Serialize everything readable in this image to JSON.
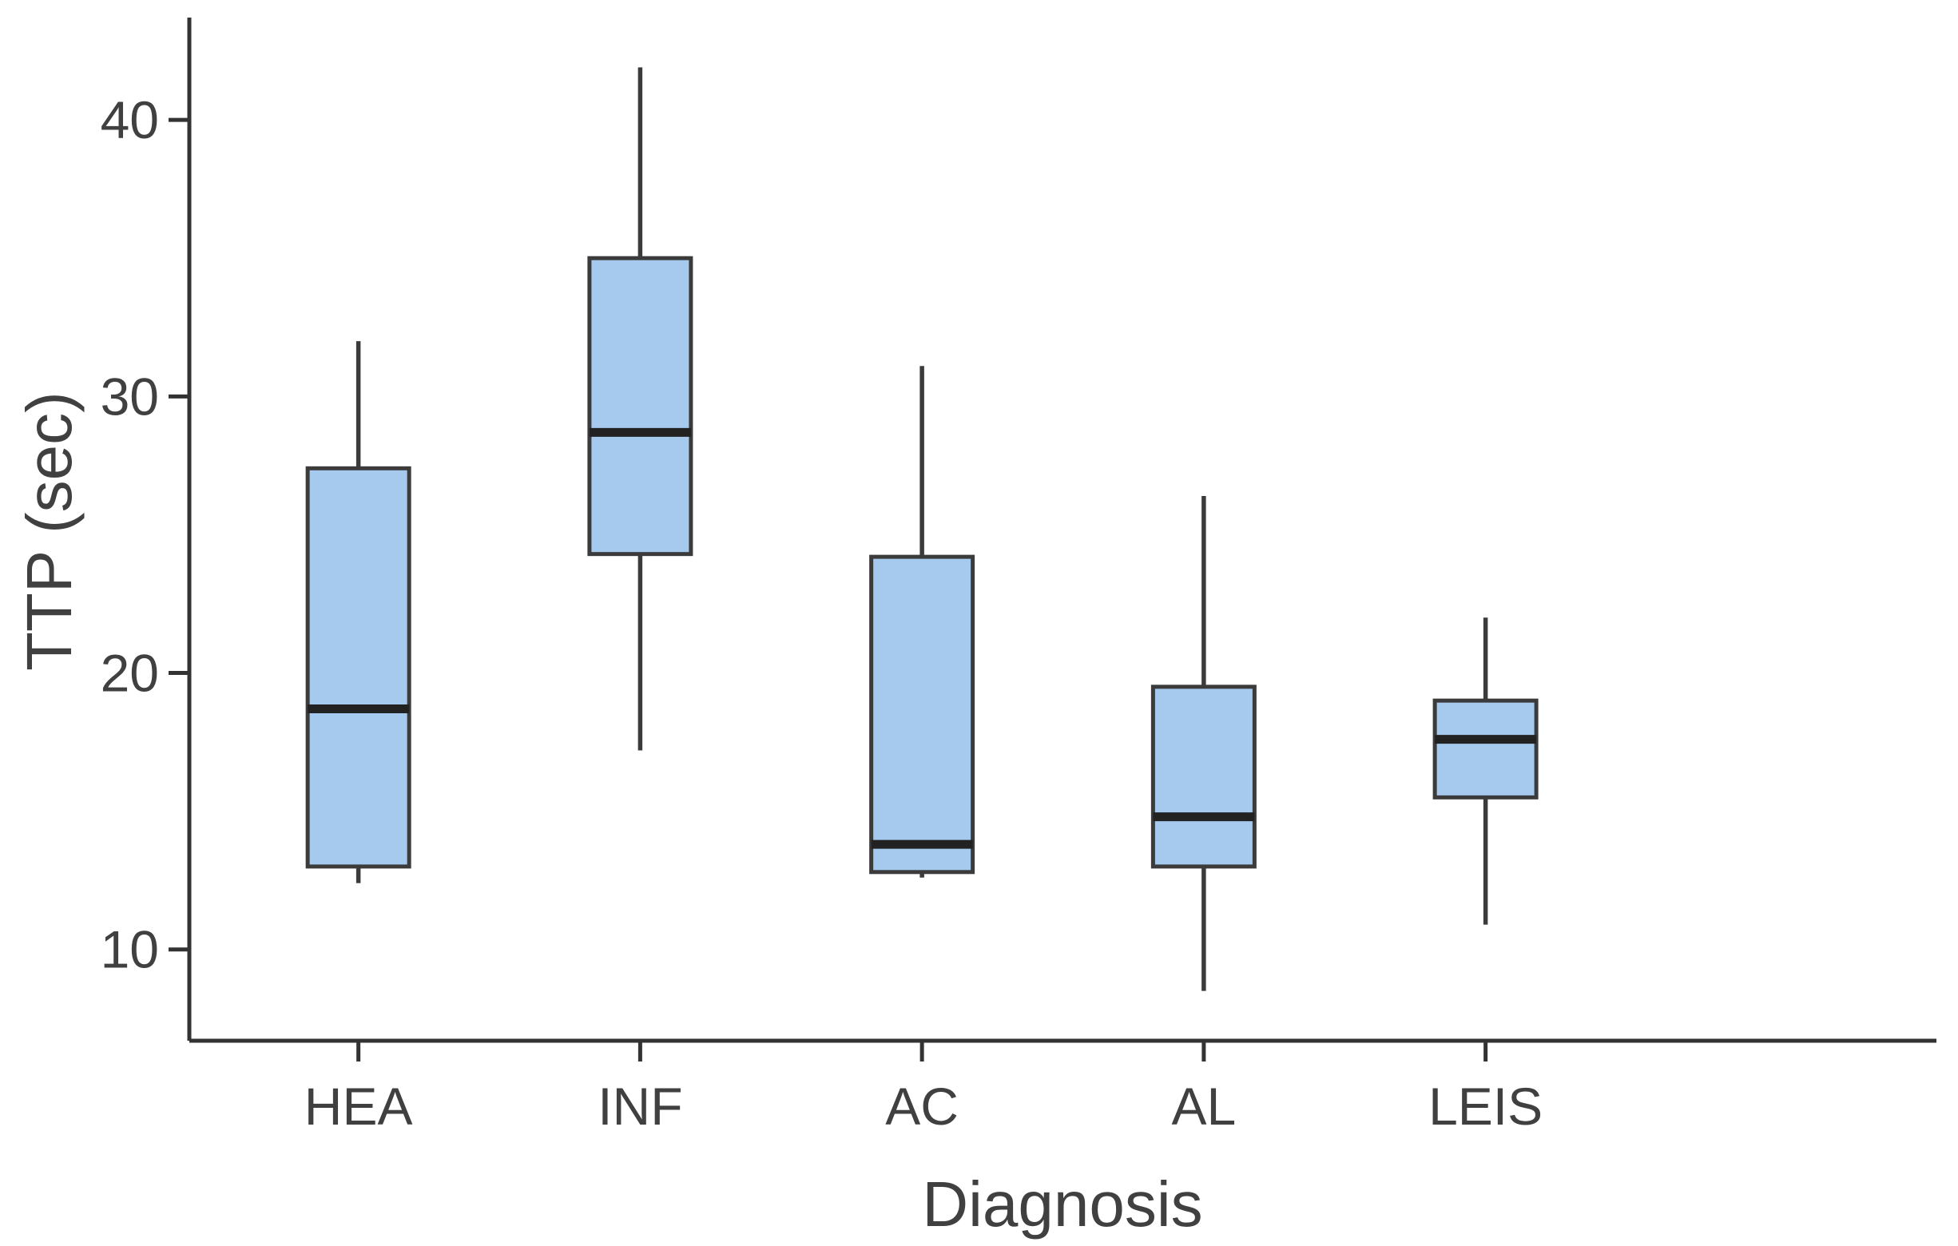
{
  "chart_data": {
    "type": "boxplot",
    "title": "",
    "xlabel": "Diagnosis",
    "ylabel": "TTP (sec)",
    "categories": [
      "HEA",
      "INF",
      "AC",
      "AL",
      "LEIS"
    ],
    "series": [
      {
        "name": "HEA",
        "min": 12.4,
        "q1": 13.0,
        "median": 18.7,
        "q3": 27.4,
        "max": 32.0
      },
      {
        "name": "INF",
        "min": 17.2,
        "q1": 24.3,
        "median": 28.7,
        "q3": 35.0,
        "max": 41.9
      },
      {
        "name": "AC",
        "min": 12.6,
        "q1": 12.8,
        "median": 13.8,
        "q3": 24.2,
        "max": 31.1
      },
      {
        "name": "AL",
        "min": 8.5,
        "q1": 13.0,
        "median": 14.8,
        "q3": 19.5,
        "max": 26.4
      },
      {
        "name": "LEIS",
        "min": 10.9,
        "q1": 15.5,
        "median": 17.6,
        "q3": 19.0,
        "max": 22.0
      }
    ],
    "yticks": [
      10,
      20,
      30,
      40
    ],
    "ylim": [
      6.7,
      43.7
    ],
    "grid": false,
    "legend": false,
    "colors": {
      "background": "#ffffff",
      "box_fill": "#a6c9ee",
      "box_stroke": "#3b3b3b",
      "median": "#222222",
      "whisker": "#3b3b3b",
      "axis": "#333333",
      "text": "#404040"
    }
  }
}
